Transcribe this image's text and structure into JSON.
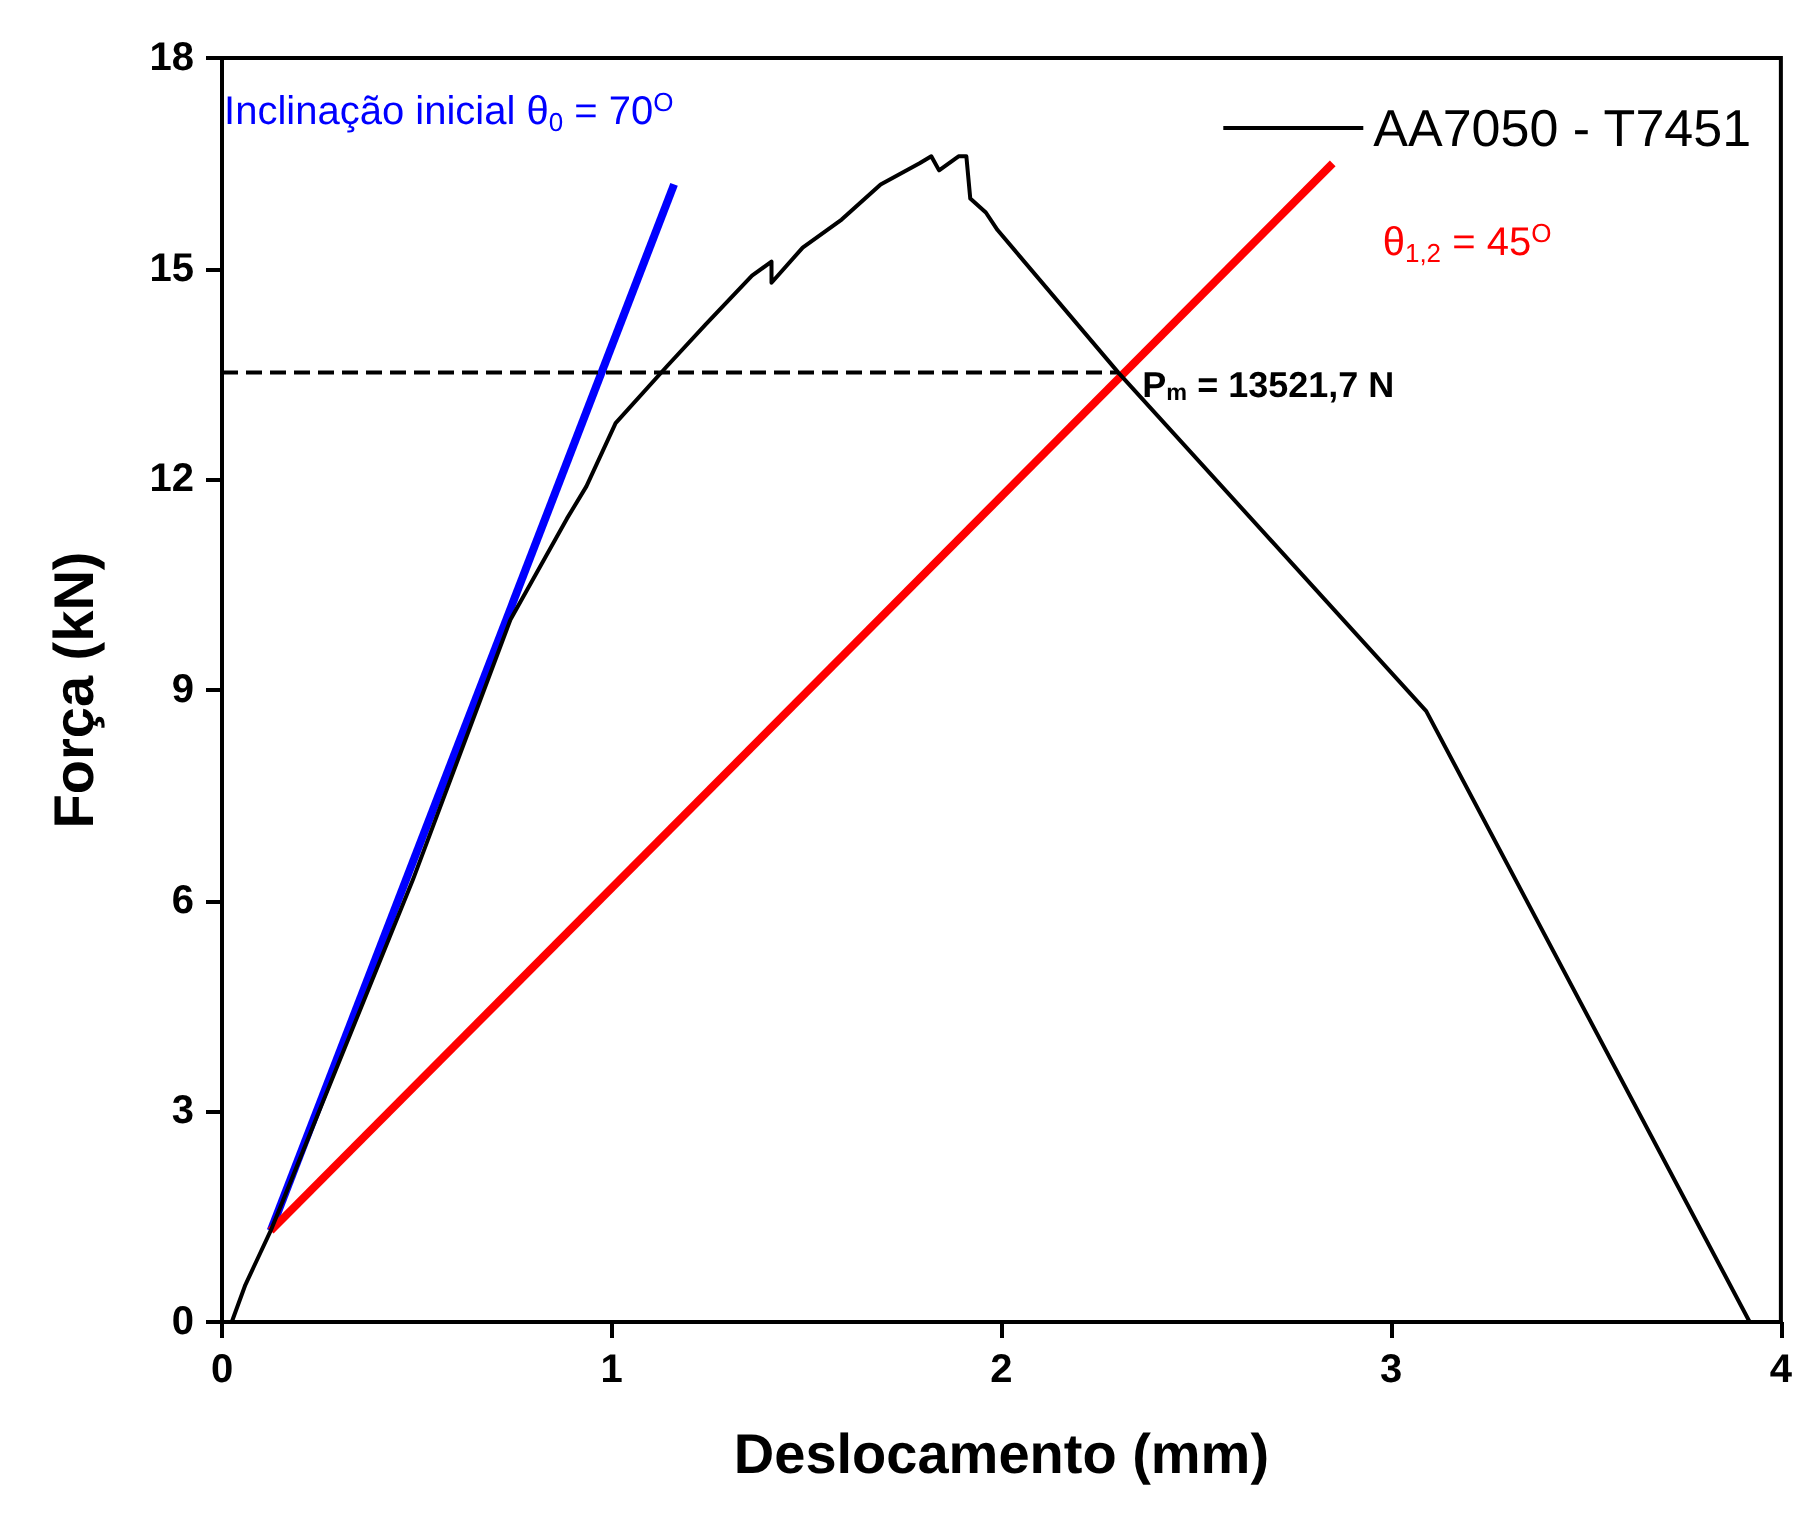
{
  "chart_data": {
    "type": "line",
    "xlabel": "Deslocamento (mm)",
    "ylabel": "Força (kN)",
    "xlim": [
      0,
      4
    ],
    "xticks": [
      0,
      1,
      2,
      3,
      4
    ],
    "ylim": [
      0,
      18
    ],
    "yticks": [
      0,
      3,
      6,
      9,
      12,
      15,
      18
    ],
    "grid": false,
    "legend": "top right",
    "marker": "none",
    "series": [
      {
        "name": "AA7050 - T7451",
        "color": "#000000",
        "x": [
          0.025,
          0.06,
          0.125,
          0.3,
          0.49,
          0.74,
          0.885,
          0.935,
          1.01,
          1.14,
          1.24,
          1.36,
          1.41,
          1.41,
          1.49,
          1.59,
          1.69,
          1.79,
          1.82,
          1.84,
          1.89,
          1.91,
          1.92,
          1.96,
          1.99,
          2.3,
          3.09,
          3.92
        ],
        "values": [
          0,
          0.53,
          1.3,
          3.7,
          6.3,
          10.0,
          11.44,
          11.9,
          12.8,
          13.6,
          14.2,
          14.9,
          15.1,
          14.8,
          15.3,
          15.7,
          16.2,
          16.5,
          16.6,
          16.4,
          16.6,
          16.6,
          16.0,
          15.8,
          15.55,
          13.52,
          8.7,
          0
        ]
      },
      {
        "name": "Inclinação inicial θ$_{0}$ = 70$^{O}$",
        "color": "#0000ff",
        "x": [
          0.125,
          1.16
        ],
        "values": [
          1.3,
          16.2
        ]
      },
      {
        "name": "θ$_{1,2}$ = 45$^{O}$",
        "color": "#ff0000",
        "x": [
          0.125,
          2.85
        ],
        "values": [
          1.3,
          16.5
        ]
      },
      {
        "color": "#000000",
        "line_style": "dashed",
        "x": [
          0,
          2.3
        ],
        "values": [
          13.52,
          13.52
        ]
      }
    ],
    "annotations": [
      {
        "text": "P$_{m}$ = 13521,7 N",
        "x": 2.3,
        "y": 13.52
      }
    ]
  }
}
